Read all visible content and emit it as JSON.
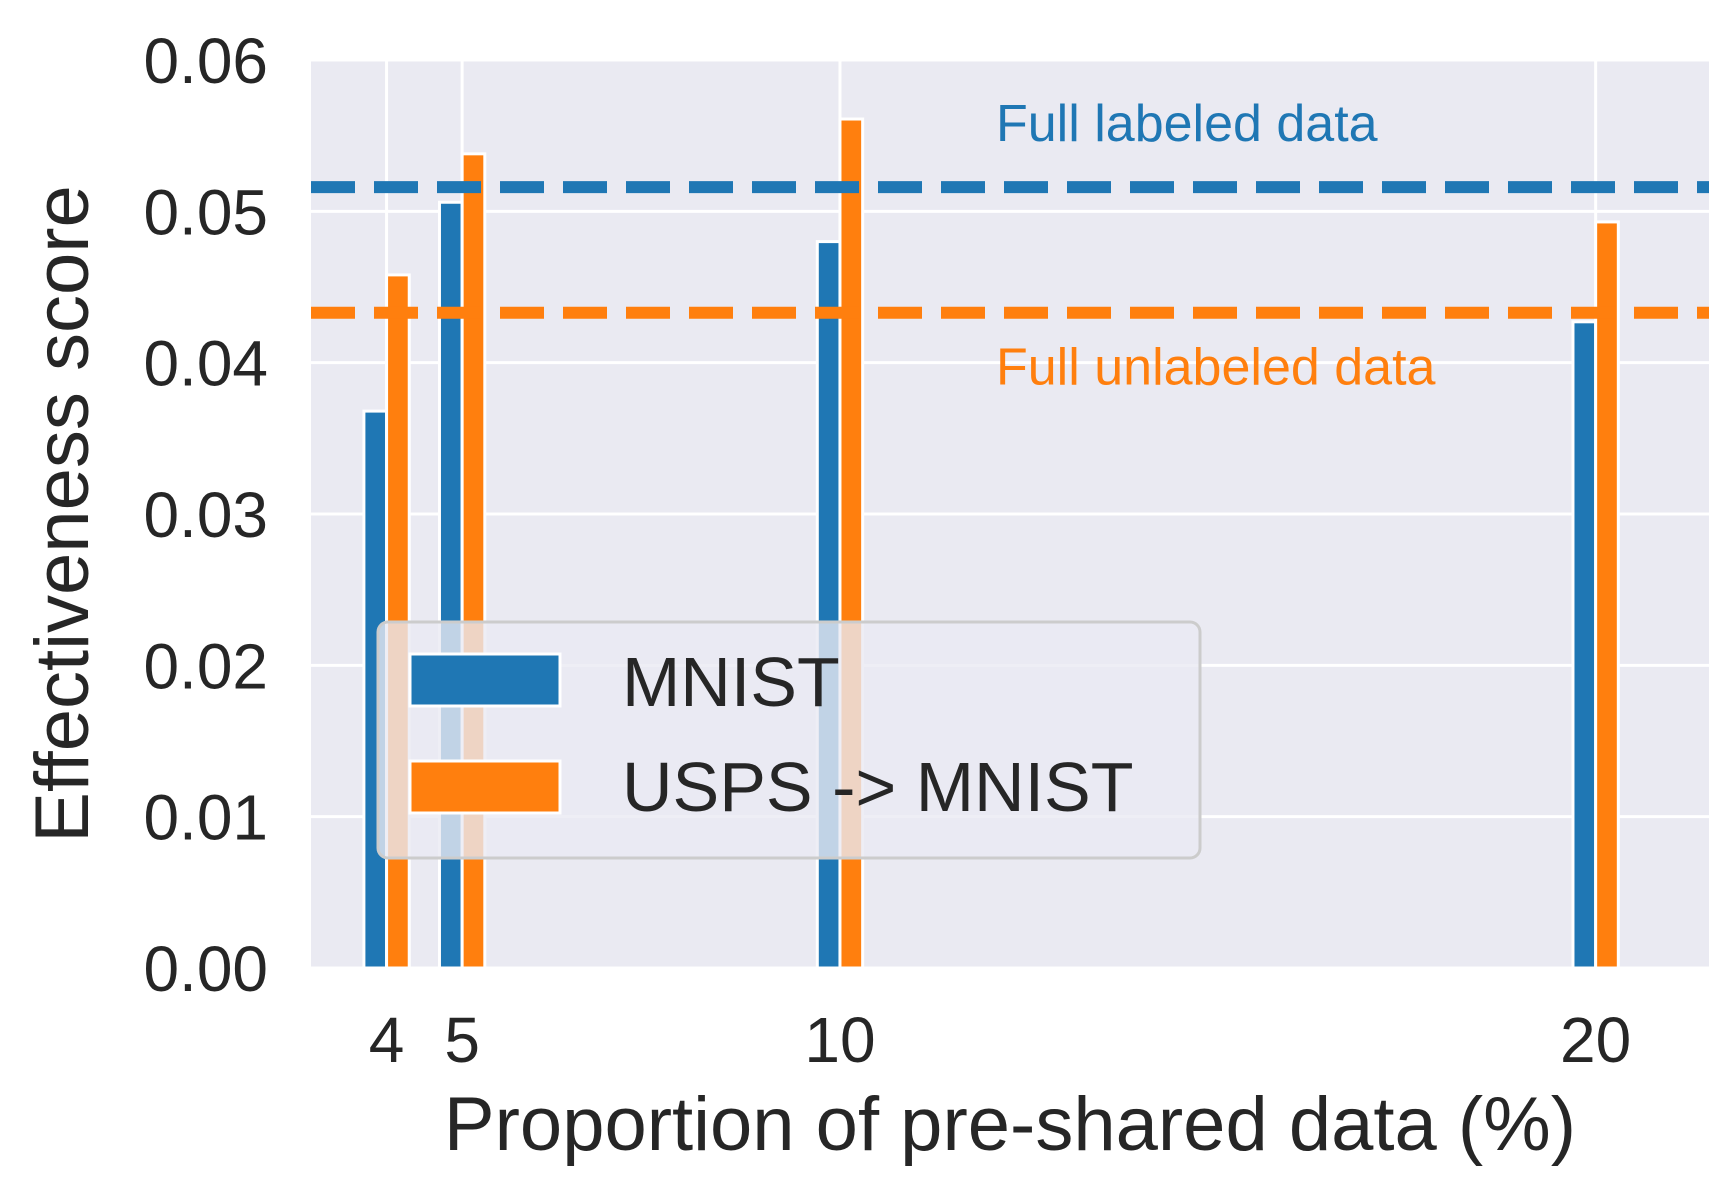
{
  "chart_data": {
    "type": "bar",
    "title": "",
    "xlabel": "Proportion of pre-shared data (%)",
    "ylabel": "Effectiveness score",
    "x": [
      4,
      5,
      10,
      20
    ],
    "x_tick_labels": [
      "4",
      "5",
      "10",
      "20"
    ],
    "xlim": [
      3,
      21.5
    ],
    "ylim": [
      0,
      0.06
    ],
    "y_ticks": [
      0,
      0.01,
      0.02,
      0.03,
      0.04,
      0.05,
      0.06
    ],
    "y_tick_labels": [
      "0.00",
      "0.01",
      "0.02",
      "0.03",
      "0.04",
      "0.05",
      "0.06"
    ],
    "grid": true,
    "legend_position": "lower-left",
    "series": [
      {
        "name": "MNIST",
        "color": "#1f77b4",
        "values": [
          0.0368,
          0.0506,
          0.048,
          0.0427
        ]
      },
      {
        "name": "USPS -> MNIST",
        "color": "#ff7f0e",
        "values": [
          0.0458,
          0.0538,
          0.0561,
          0.0493
        ]
      }
    ],
    "reference_lines": [
      {
        "label": "Full labeled data",
        "value": 0.0516,
        "color": "#1f77b4",
        "label_side": "above"
      },
      {
        "label": "Full unlabeled data",
        "value": 0.0433,
        "color": "#ff7f0e",
        "label_side": "below"
      }
    ]
  }
}
